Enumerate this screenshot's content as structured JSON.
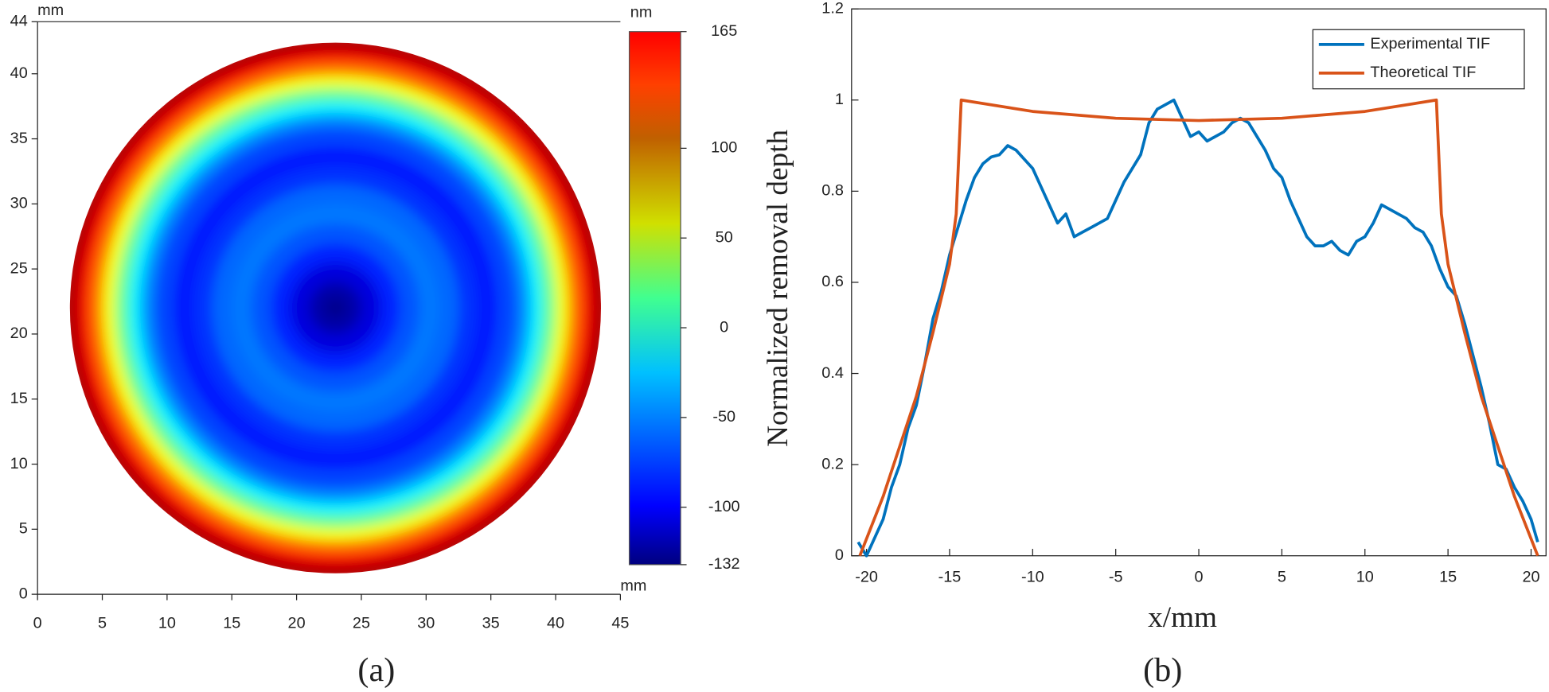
{
  "chart_data": [
    {
      "type": "surface",
      "label": "(a)",
      "x_label": "mm",
      "y_label": "mm",
      "colorbar_label": "nm",
      "xlim": [
        0,
        45
      ],
      "xticks": [
        0,
        5,
        10,
        15,
        20,
        25,
        30,
        35,
        40,
        45
      ],
      "ylim": [
        0,
        44
      ],
      "yticks": [
        0,
        5,
        10,
        15,
        20,
        25,
        30,
        35,
        40,
        44
      ],
      "zlim": [
        -132,
        165
      ],
      "zticks": [
        165,
        100,
        50,
        0,
        -50,
        -100,
        -132
      ],
      "center": [
        23,
        22
      ],
      "radius": [
        20.5,
        19.8,
        19,
        18,
        17,
        16,
        15,
        14,
        12.5,
        11,
        9.5,
        8,
        6.5,
        5,
        3.5,
        2,
        0.8
      ],
      "values": [
        150,
        130,
        95,
        50,
        10,
        -25,
        -55,
        -75,
        -88,
        -80,
        -65,
        -60,
        -70,
        -85,
        -105,
        -120,
        -128
      ]
    },
    {
      "type": "line",
      "label": "(b)",
      "x_label": "x/mm",
      "y_label": "Normalized removal depth",
      "xlim": [
        -20.9,
        20.9
      ],
      "xticks": [
        -20,
        -15,
        -10,
        -5,
        0,
        5,
        10,
        15,
        20
      ],
      "ylim": [
        0,
        1.2
      ],
      "yticks": [
        0,
        0.2,
        0.4,
        0.6,
        0.8,
        1,
        1.2
      ],
      "legend": "top-right",
      "series": [
        {
          "name": "Experimental TIF",
          "color": "#0072bd",
          "x": [
            -20.5,
            -20,
            -19,
            -18.5,
            -18,
            -17.5,
            -17,
            -16.5,
            -16,
            -15.5,
            -15,
            -14.5,
            -14,
            -13.5,
            -13,
            -12.5,
            -12,
            -11.5,
            -11,
            -10.5,
            -10,
            -9.5,
            -9,
            -8.5,
            -8,
            -7.5,
            -7,
            -6.5,
            -6,
            -5.5,
            -5,
            -4.5,
            -4,
            -3.5,
            -3,
            -2.5,
            -2,
            -1.5,
            -1,
            -0.5,
            0,
            0.5,
            1,
            1.5,
            2,
            2.5,
            3,
            3.5,
            4,
            4.5,
            5,
            5.5,
            6,
            6.5,
            7,
            7.5,
            8,
            8.5,
            9,
            9.5,
            10,
            10.5,
            11,
            11.5,
            12,
            12.5,
            13,
            13.5,
            14,
            14.5,
            15,
            15.5,
            16,
            16.5,
            17,
            17.5,
            18,
            18.5,
            19,
            19.5,
            20,
            20.4
          ],
          "values": [
            0.03,
            0.0,
            0.08,
            0.15,
            0.2,
            0.28,
            0.33,
            0.42,
            0.52,
            0.58,
            0.66,
            0.72,
            0.78,
            0.83,
            0.86,
            0.875,
            0.88,
            0.9,
            0.89,
            0.87,
            0.85,
            0.81,
            0.77,
            0.73,
            0.75,
            0.7,
            0.71,
            0.72,
            0.73,
            0.74,
            0.78,
            0.82,
            0.85,
            0.88,
            0.95,
            0.98,
            0.99,
            1.0,
            0.96,
            0.92,
            0.93,
            0.91,
            0.92,
            0.93,
            0.95,
            0.96,
            0.95,
            0.92,
            0.89,
            0.85,
            0.83,
            0.78,
            0.74,
            0.7,
            0.68,
            0.68,
            0.69,
            0.67,
            0.66,
            0.69,
            0.7,
            0.73,
            0.77,
            0.76,
            0.75,
            0.74,
            0.72,
            0.71,
            0.68,
            0.63,
            0.59,
            0.57,
            0.51,
            0.44,
            0.37,
            0.29,
            0.2,
            0.19,
            0.15,
            0.12,
            0.08,
            0.03
          ]
        },
        {
          "name": "Theoretical TIF",
          "color": "#d95319",
          "x": [
            -20.4,
            -19,
            -18,
            -17,
            -16,
            -15,
            -14.6,
            -14.3,
            -10,
            -5,
            0,
            5,
            10,
            14.3,
            14.6,
            15,
            16,
            17,
            18,
            19,
            20.4
          ],
          "values": [
            0,
            0.13,
            0.24,
            0.35,
            0.49,
            0.64,
            0.75,
            1.0,
            0.975,
            0.96,
            0.955,
            0.96,
            0.975,
            1.0,
            0.75,
            0.64,
            0.49,
            0.35,
            0.24,
            0.13,
            0
          ]
        }
      ]
    }
  ]
}
